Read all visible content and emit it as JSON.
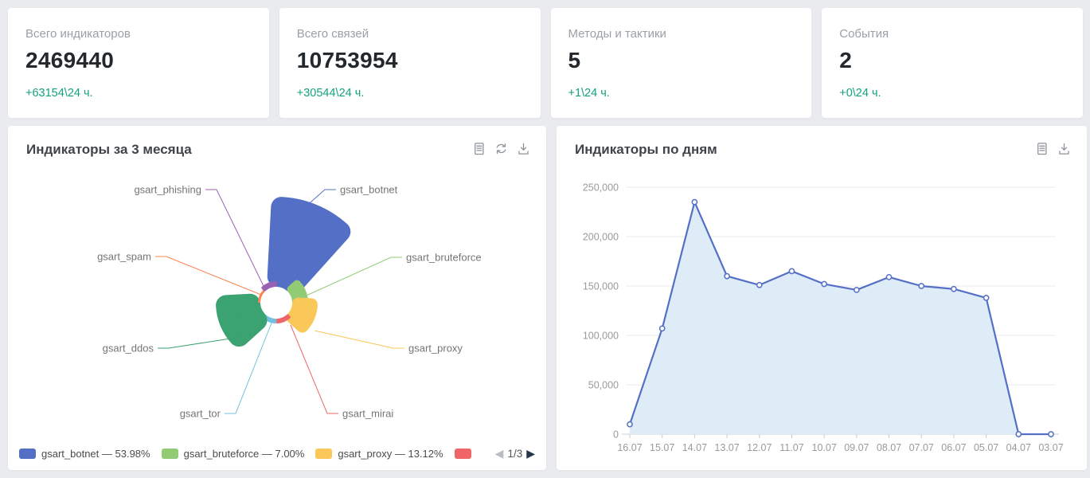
{
  "stat_cards": [
    {
      "label": "Всего индикаторов",
      "value": "2469440",
      "delta": "+63154\\24 ч."
    },
    {
      "label": "Всего связей",
      "value": "10753954",
      "delta": "+30544\\24 ч."
    },
    {
      "label": "Методы и тактики",
      "value": "5",
      "delta": "+1\\24 ч."
    },
    {
      "label": "События",
      "value": "2",
      "delta": "+0\\24 ч."
    }
  ],
  "rose_panel": {
    "title": "Индикаторы за 3 месяца",
    "toolbar": [
      "data-view",
      "refresh",
      "download"
    ],
    "legend_items": [
      {
        "label": "gsart_botnet — 53.98%",
        "color": "#5470c6"
      },
      {
        "label": "gsart_bruteforce — 7.00%",
        "color": "#91cc75"
      },
      {
        "label": "gsart_proxy — 13.12%",
        "color": "#fac858"
      },
      {
        "label": "",
        "color": "#ee6666"
      }
    ],
    "pagination": {
      "prev_icon": "◀",
      "label": "1/3",
      "next_icon": "▶"
    }
  },
  "line_panel": {
    "title": "Индикаторы по дням",
    "toolbar": [
      "data-view",
      "download"
    ]
  },
  "chart_data": [
    {
      "type": "pie",
      "variant": "nightingale-rose",
      "title": "Индикаторы за 3 месяца",
      "slices": [
        {
          "name": "gsart_botnet",
          "color": "#5470c6",
          "percent_label": "53.98%",
          "radius_est": 133
        },
        {
          "name": "gsart_bruteforce",
          "color": "#91cc75",
          "percent_label": "7.00%",
          "radius_est": 40
        },
        {
          "name": "gsart_proxy",
          "color": "#fac858",
          "percent_label": "13.12%",
          "radius_est": 52
        },
        {
          "name": "gsart_mirai",
          "color": "#ee6666",
          "radius_est": 26
        },
        {
          "name": "gsart_tor",
          "color": "#73c0de",
          "radius_est": 26
        },
        {
          "name": "gsart_ddos",
          "color": "#3ba272",
          "radius_est": 76
        },
        {
          "name": "gsart_spam",
          "color": "#fc8452",
          "radius_est": 21
        },
        {
          "name": "gsart_phishing",
          "color": "#9a60b4",
          "radius_est": 27
        }
      ],
      "legend_position": "bottom",
      "legend_page": "1/3"
    },
    {
      "type": "area",
      "title": "Индикаторы по дням",
      "categories": [
        "16.07",
        "15.07",
        "14.07",
        "13.07",
        "12.07",
        "11.07",
        "10.07",
        "09.07",
        "08.07",
        "07.07",
        "06.07",
        "05.07",
        "04.07",
        "03.07"
      ],
      "values": [
        10000,
        107000,
        235000,
        160000,
        151000,
        165000,
        152000,
        146000,
        159000,
        150000,
        147000,
        138000,
        0,
        0
      ],
      "ylim": [
        0,
        250000
      ],
      "ytick_labels": [
        "0",
        "50,000",
        "100,000",
        "150,000",
        "200,000",
        "250,000"
      ],
      "grid": true,
      "line_color": "#5470c6",
      "area_color": "#ddecf6"
    }
  ]
}
